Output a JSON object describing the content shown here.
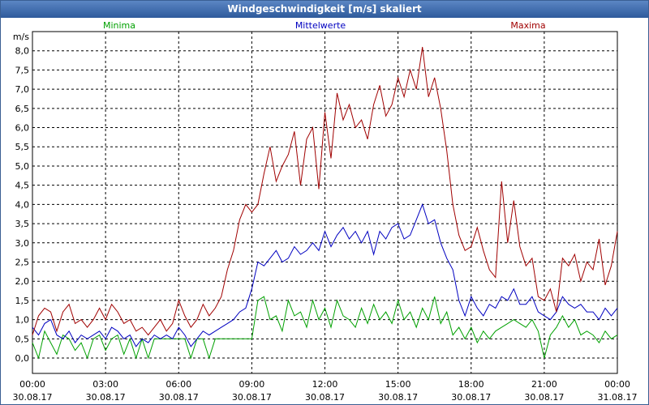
{
  "window": {
    "title": "Windgeschwindigkeit [m/s] skaliert"
  },
  "chart_data": {
    "type": "line",
    "title": "Windgeschwindigkeit [m/s] skaliert",
    "ylabel": "m/s",
    "xlabel": "",
    "ylim": [
      -0.4,
      8.5
    ],
    "xlim": [
      0,
      24
    ],
    "yticks": [
      "0,0",
      "0,5",
      "1,0",
      "1,5",
      "2,0",
      "2,5",
      "3,0",
      "3,5",
      "4,0",
      "4,5",
      "5,0",
      "5,5",
      "6,0",
      "6,5",
      "7,0",
      "7,5",
      "8,0"
    ],
    "ytick_values": [
      0,
      0.5,
      1,
      1.5,
      2,
      2.5,
      3,
      3.5,
      4,
      4.5,
      5,
      5.5,
      6,
      6.5,
      7,
      7.5,
      8
    ],
    "xticks": [
      {
        "time": "00:00",
        "date": "30.08.17",
        "x": 0
      },
      {
        "time": "03:00",
        "date": "30.08.17",
        "x": 3
      },
      {
        "time": "06:00",
        "date": "30.08.17",
        "x": 6
      },
      {
        "time": "09:00",
        "date": "30.08.17",
        "x": 9
      },
      {
        "time": "12:00",
        "date": "30.08.17",
        "x": 12
      },
      {
        "time": "15:00",
        "date": "30.08.17",
        "x": 15
      },
      {
        "time": "18:00",
        "date": "30.08.17",
        "x": 18
      },
      {
        "time": "21:00",
        "date": "30.08.17",
        "x": 21
      },
      {
        "time": "00:00",
        "date": "31.08.17",
        "x": 24
      }
    ],
    "grid": true,
    "series": [
      {
        "name": "Minima",
        "color": "#00a000",
        "x": [
          0,
          0.25,
          0.5,
          0.75,
          1,
          1.25,
          1.5,
          1.75,
          2,
          2.25,
          2.5,
          2.75,
          3,
          3.25,
          3.5,
          3.75,
          4,
          4.25,
          4.5,
          4.75,
          5,
          5.25,
          5.5,
          5.75,
          6,
          6.25,
          6.5,
          6.75,
          7,
          7.25,
          7.5,
          7.75,
          8,
          8.25,
          8.5,
          8.75,
          9,
          9.25,
          9.5,
          9.75,
          10,
          10.25,
          10.5,
          10.75,
          11,
          11.25,
          11.5,
          11.75,
          12,
          12.25,
          12.5,
          12.75,
          13,
          13.25,
          13.5,
          13.75,
          14,
          14.25,
          14.5,
          14.75,
          15,
          15.25,
          15.5,
          15.75,
          16,
          16.25,
          16.5,
          16.75,
          17,
          17.25,
          17.5,
          17.75,
          18,
          18.25,
          18.5,
          18.75,
          19,
          19.25,
          19.5,
          19.75,
          20,
          20.25,
          20.5,
          20.75,
          21,
          21.25,
          21.5,
          21.75,
          22,
          22.25,
          22.5,
          22.75,
          23,
          23.25,
          23.5,
          23.75,
          24
        ],
        "values": [
          0.4,
          0.0,
          0.7,
          0.4,
          0.1,
          0.6,
          0.5,
          0.2,
          0.4,
          0.0,
          0.5,
          0.6,
          0.2,
          0.5,
          0.6,
          0.1,
          0.5,
          0.0,
          0.5,
          0.0,
          0.5,
          0.5,
          0.5,
          0.5,
          0.5,
          0.5,
          0.0,
          0.5,
          0.5,
          0.0,
          0.5,
          0.5,
          0.5,
          0.5,
          0.5,
          0.5,
          0.5,
          1.5,
          1.6,
          1.0,
          1.1,
          0.7,
          1.5,
          1.1,
          1.2,
          0.8,
          1.5,
          1.0,
          1.3,
          0.8,
          1.5,
          1.1,
          1.0,
          0.8,
          1.3,
          0.9,
          1.4,
          1.0,
          1.2,
          0.9,
          1.5,
          1.0,
          1.2,
          0.8,
          1.3,
          1.0,
          1.6,
          0.9,
          1.2,
          0.6,
          0.8,
          0.5,
          0.8,
          0.4,
          0.7,
          0.5,
          0.7,
          0.8,
          0.9,
          1.0,
          0.9,
          0.8,
          1.0,
          0.7,
          0.0,
          0.6,
          0.8,
          1.1,
          0.8,
          1.0,
          0.6,
          0.7,
          0.6,
          0.4,
          0.7,
          0.5,
          0.6
        ]
      },
      {
        "name": "Mittelwerte",
        "color": "#0000c0",
        "x": [
          0,
          0.25,
          0.5,
          0.75,
          1,
          1.25,
          1.5,
          1.75,
          2,
          2.25,
          2.5,
          2.75,
          3,
          3.25,
          3.5,
          3.75,
          4,
          4.25,
          4.5,
          4.75,
          5,
          5.25,
          5.5,
          5.75,
          6,
          6.25,
          6.5,
          6.75,
          7,
          7.25,
          7.5,
          7.75,
          8,
          8.25,
          8.5,
          8.75,
          9,
          9.25,
          9.5,
          9.75,
          10,
          10.25,
          10.5,
          10.75,
          11,
          11.25,
          11.5,
          11.75,
          12,
          12.25,
          12.5,
          12.75,
          13,
          13.25,
          13.5,
          13.75,
          14,
          14.25,
          14.5,
          14.75,
          15,
          15.25,
          15.5,
          15.75,
          16,
          16.25,
          16.5,
          16.75,
          17,
          17.25,
          17.5,
          17.75,
          18,
          18.25,
          18.5,
          18.75,
          19,
          19.25,
          19.5,
          19.75,
          20,
          20.25,
          20.5,
          20.75,
          21,
          21.25,
          21.5,
          21.75,
          22,
          22.25,
          22.5,
          22.75,
          23,
          23.25,
          23.5,
          23.75,
          24
        ],
        "values": [
          0.8,
          0.6,
          0.9,
          1.0,
          0.6,
          0.5,
          0.7,
          0.4,
          0.6,
          0.5,
          0.6,
          0.7,
          0.5,
          0.8,
          0.7,
          0.5,
          0.6,
          0.3,
          0.5,
          0.4,
          0.6,
          0.5,
          0.6,
          0.5,
          0.8,
          0.6,
          0.3,
          0.5,
          0.7,
          0.6,
          0.7,
          0.8,
          0.9,
          1.0,
          1.2,
          1.3,
          1.8,
          2.5,
          2.4,
          2.6,
          2.8,
          2.5,
          2.6,
          2.9,
          2.7,
          2.8,
          3.0,
          2.8,
          3.3,
          2.9,
          3.2,
          3.4,
          3.1,
          3.3,
          3.0,
          3.3,
          2.7,
          3.3,
          3.1,
          3.4,
          3.5,
          3.1,
          3.2,
          3.6,
          4.0,
          3.5,
          3.6,
          3.0,
          2.6,
          2.3,
          1.5,
          1.1,
          1.6,
          1.3,
          1.1,
          1.4,
          1.3,
          1.6,
          1.5,
          1.8,
          1.4,
          1.4,
          1.6,
          1.2,
          1.1,
          1.0,
          1.2,
          1.6,
          1.4,
          1.3,
          1.4,
          1.2,
          1.2,
          1.0,
          1.3,
          1.1,
          1.3
        ]
      },
      {
        "name": "Maxima",
        "color": "#a00000",
        "x": [
          0,
          0.25,
          0.5,
          0.75,
          1,
          1.25,
          1.5,
          1.75,
          2,
          2.25,
          2.5,
          2.75,
          3,
          3.25,
          3.5,
          3.75,
          4,
          4.25,
          4.5,
          4.75,
          5,
          5.25,
          5.5,
          5.75,
          6,
          6.25,
          6.5,
          6.75,
          7,
          7.25,
          7.5,
          7.75,
          8,
          8.25,
          8.5,
          8.75,
          9,
          9.25,
          9.5,
          9.75,
          10,
          10.25,
          10.5,
          10.75,
          11,
          11.25,
          11.5,
          11.75,
          12,
          12.25,
          12.5,
          12.75,
          13,
          13.25,
          13.5,
          13.75,
          14,
          14.25,
          14.5,
          14.75,
          15,
          15.25,
          15.5,
          15.75,
          16,
          16.25,
          16.5,
          16.75,
          17,
          17.25,
          17.5,
          17.75,
          18,
          18.25,
          18.5,
          18.75,
          19,
          19.25,
          19.5,
          19.75,
          20,
          20.25,
          20.5,
          20.75,
          21,
          21.25,
          21.5,
          21.75,
          22,
          22.25,
          22.5,
          22.75,
          23,
          23.25,
          23.5,
          23.75,
          24
        ],
        "values": [
          0.6,
          1.1,
          1.3,
          1.2,
          0.7,
          1.2,
          1.4,
          0.9,
          1.0,
          0.8,
          1.0,
          1.3,
          1.0,
          1.4,
          1.2,
          0.9,
          1.0,
          0.7,
          0.8,
          0.6,
          0.8,
          1.0,
          0.7,
          0.9,
          1.5,
          1.1,
          0.8,
          1.0,
          1.4,
          1.1,
          1.3,
          1.6,
          2.3,
          2.8,
          3.6,
          4.0,
          3.8,
          4.0,
          4.8,
          5.5,
          4.6,
          5.0,
          5.3,
          5.9,
          4.5,
          5.7,
          6.0,
          4.4,
          6.4,
          5.2,
          6.9,
          6.2,
          6.6,
          6.0,
          6.2,
          5.7,
          6.6,
          7.1,
          6.3,
          6.6,
          7.3,
          6.8,
          7.5,
          7.0,
          8.1,
          6.8,
          7.3,
          6.5,
          5.4,
          4.0,
          3.2,
          2.8,
          2.9,
          3.4,
          2.8,
          2.3,
          2.1,
          4.6,
          3.0,
          4.1,
          2.9,
          2.4,
          2.6,
          1.6,
          1.5,
          1.8,
          1.2,
          2.6,
          2.4,
          2.7,
          2.0,
          2.5,
          2.3,
          3.1,
          1.9,
          2.4,
          3.3
        ]
      }
    ]
  }
}
